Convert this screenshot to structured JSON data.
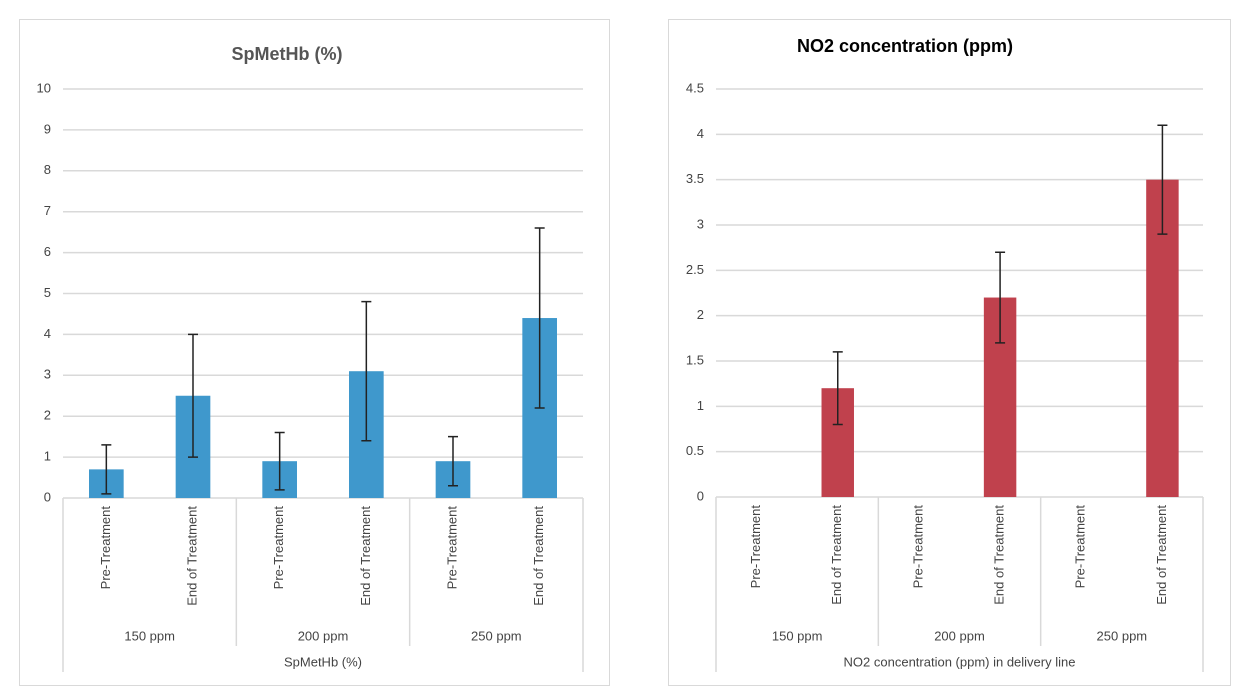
{
  "chart_data": [
    {
      "type": "bar",
      "title": "SpMetHb (%)",
      "xlabel": "SpMetHb (%)",
      "categories": [
        "Pre-Treatment",
        "End of Treatment",
        "Pre-Treatment",
        "End of Treatment",
        "Pre-Treatment",
        "End of Treatment"
      ],
      "groups": [
        "150 ppm",
        "200 ppm",
        "250 ppm"
      ],
      "values": [
        0.7,
        2.5,
        0.9,
        3.1,
        0.9,
        4.4
      ],
      "errors": [
        0.6,
        1.5,
        0.7,
        1.7,
        0.6,
        2.2
      ],
      "color": "#3f98cc",
      "ylim": [
        0,
        10
      ],
      "yticks": [
        0,
        1,
        2,
        3,
        4,
        5,
        6,
        7,
        8,
        9,
        10
      ],
      "grid": true
    },
    {
      "type": "bar",
      "title": "NO2 concentration (ppm)",
      "xlabel": "NO2 concentration (ppm) in delivery line",
      "categories": [
        "Pre-Treatment",
        "End of Treatment",
        "Pre-Treatment",
        "End of Treatment",
        "Pre-Treatment",
        "End of Treatment"
      ],
      "groups": [
        "150 ppm",
        "200 ppm",
        "250 ppm"
      ],
      "values": [
        null,
        1.2,
        null,
        2.2,
        null,
        3.5
      ],
      "errors": [
        null,
        0.4,
        null,
        0.5,
        null,
        0.6
      ],
      "color": "#c0414d",
      "ylim": [
        0,
        4.5
      ],
      "yticks": [
        0,
        0.5,
        1,
        1.5,
        2,
        2.5,
        3,
        3.5,
        4,
        4.5
      ],
      "grid": true
    }
  ]
}
